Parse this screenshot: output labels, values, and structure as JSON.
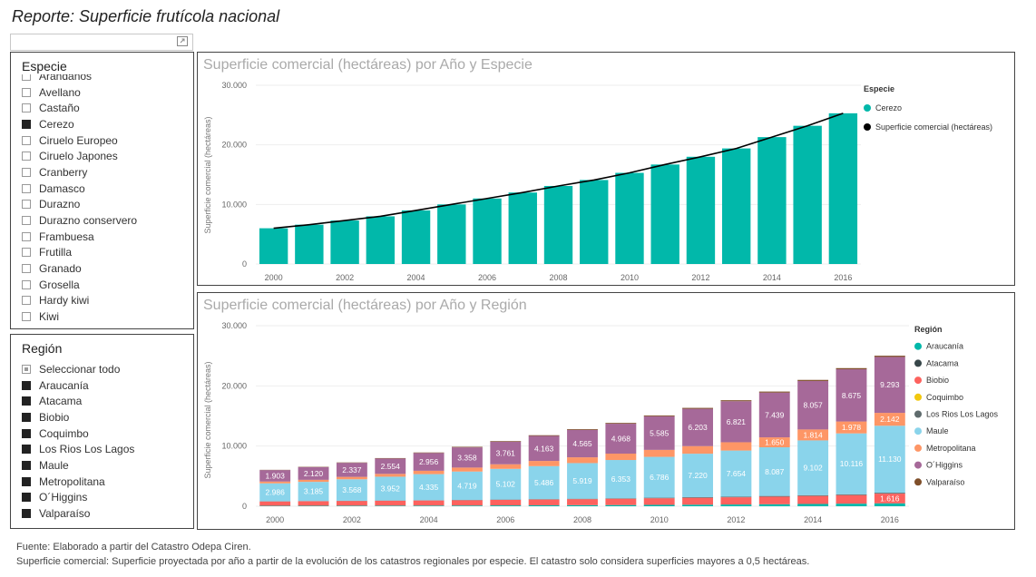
{
  "report": {
    "title": "Reporte: Superficie frutícola nacional"
  },
  "slicer_especie": {
    "title": "Especie",
    "items": [
      {
        "label": "Arándanos",
        "checked": false
      },
      {
        "label": "Avellano",
        "checked": false
      },
      {
        "label": "Castaño",
        "checked": false
      },
      {
        "label": "Cerezo",
        "checked": true
      },
      {
        "label": "Ciruelo Europeo",
        "checked": false
      },
      {
        "label": "Ciruelo Japones",
        "checked": false
      },
      {
        "label": "Cranberry",
        "checked": false
      },
      {
        "label": "Damasco",
        "checked": false
      },
      {
        "label": "Durazno",
        "checked": false
      },
      {
        "label": "Durazno conservero",
        "checked": false
      },
      {
        "label": "Frambuesa",
        "checked": false
      },
      {
        "label": "Frutilla",
        "checked": false
      },
      {
        "label": "Granado",
        "checked": false
      },
      {
        "label": "Grosella",
        "checked": false
      },
      {
        "label": "Hardy kiwi",
        "checked": false
      },
      {
        "label": "Kiwi",
        "checked": false
      }
    ]
  },
  "slicer_region": {
    "title": "Región",
    "items": [
      {
        "label": "Seleccionar todo",
        "state": "partial"
      },
      {
        "label": "Araucanía",
        "state": "on"
      },
      {
        "label": "Atacama",
        "state": "on"
      },
      {
        "label": "Biobio",
        "state": "on"
      },
      {
        "label": "Coquimbo",
        "state": "on"
      },
      {
        "label": "Los Rios Los Lagos",
        "state": "on"
      },
      {
        "label": "Maule",
        "state": "on"
      },
      {
        "label": "Metropolitana",
        "state": "on"
      },
      {
        "label": "O´Higgins",
        "state": "on"
      },
      {
        "label": "Valparaíso",
        "state": "on"
      }
    ]
  },
  "footer": {
    "line1": "Fuente: Elaborado a partir del Catastro Odepa Ciren.",
    "line2": "Superficie comercial: Superficie proyectada por año a partir de la evolución de los catastros regionales por especie. El catastro solo considera superficies mayores a 0,5 hectáreas."
  },
  "chart_data": [
    {
      "type": "bar",
      "title": "Superficie comercial (hectáreas) por Año y Especie",
      "ylabel": "Superficie comercial (hectáreas)",
      "ylim": [
        0,
        30000
      ],
      "yticks": [
        0,
        10000,
        20000,
        30000
      ],
      "ytick_labels": [
        "0",
        "10.000",
        "20.000",
        "30.000"
      ],
      "categories": [
        2000,
        2001,
        2002,
        2003,
        2004,
        2005,
        2006,
        2007,
        2008,
        2009,
        2010,
        2011,
        2012,
        2013,
        2014,
        2015,
        2016
      ],
      "xtick_labels": [
        "2000",
        "2002",
        "2004",
        "2006",
        "2008",
        "2010",
        "2012",
        "2014",
        "2016"
      ],
      "legend_title": "Especie",
      "legend_position": "right",
      "series": [
        {
          "name": "Cerezo",
          "kind": "bar",
          "color": "#01B8AA",
          "values": [
            6000,
            6600,
            7300,
            8000,
            9000,
            10000,
            11000,
            12000,
            13100,
            14100,
            15300,
            16700,
            18000,
            19400,
            21300,
            23200,
            25300
          ]
        },
        {
          "name": "Superficie comercial (hectáreas)",
          "kind": "line",
          "color": "#000000",
          "values": [
            6000,
            6600,
            7300,
            8000,
            9000,
            10000,
            11000,
            12000,
            13100,
            14100,
            15300,
            16700,
            18000,
            19400,
            21300,
            23200,
            25300
          ]
        }
      ]
    },
    {
      "type": "bar",
      "stacked": true,
      "title": "Superficie comercial (hectáreas) por Año y Región",
      "ylabel": "Superficie comercial (hectáreas)",
      "ylim": [
        0,
        30000
      ],
      "yticks": [
        0,
        10000,
        20000,
        30000
      ],
      "ytick_labels": [
        "0",
        "10.000",
        "20.000",
        "30.000"
      ],
      "categories": [
        2000,
        2001,
        2002,
        2003,
        2004,
        2005,
        2006,
        2007,
        2008,
        2009,
        2010,
        2011,
        2012,
        2013,
        2014,
        2015,
        2016
      ],
      "xtick_labels": [
        "2000",
        "2002",
        "2004",
        "2006",
        "2008",
        "2010",
        "2012",
        "2014",
        "2016"
      ],
      "legend_title": "Región",
      "legend_position": "right",
      "series": [
        {
          "name": "Araucanía",
          "color": "#01B8AA",
          "values": [
            70,
            80,
            90,
            100,
            110,
            120,
            140,
            160,
            180,
            200,
            230,
            260,
            290,
            330,
            380,
            430,
            480
          ]
        },
        {
          "name": "Atacama",
          "color": "#374649",
          "values": [
            0,
            0,
            0,
            0,
            0,
            0,
            0,
            0,
            0,
            0,
            0,
            0,
            0,
            0,
            0,
            0,
            0
          ]
        },
        {
          "name": "Biobio",
          "color": "#FD625E",
          "values": [
            730,
            760,
            790,
            820,
            850,
            880,
            920,
            960,
            1000,
            1050,
            1100,
            1150,
            1200,
            1260,
            1330,
            1420,
            1616
          ],
          "labels": [
            null,
            null,
            null,
            null,
            null,
            null,
            null,
            null,
            null,
            null,
            null,
            null,
            null,
            null,
            null,
            null,
            "1.616"
          ]
        },
        {
          "name": "Coquimbo",
          "color": "#F2C80F",
          "values": [
            0,
            0,
            0,
            0,
            0,
            0,
            0,
            0,
            0,
            0,
            0,
            0,
            0,
            0,
            0,
            0,
            0
          ]
        },
        {
          "name": "Los Rios Los Lagos",
          "color": "#5F6B6D",
          "values": [
            20,
            25,
            30,
            35,
            40,
            45,
            50,
            60,
            70,
            80,
            90,
            100,
            110,
            120,
            130,
            140,
            150
          ]
        },
        {
          "name": "Maule",
          "color": "#8AD4EB",
          "values": [
            2986,
            3185,
            3568,
            3952,
            4335,
            4719,
            5102,
            5486,
            5919,
            6353,
            6786,
            7220,
            7654,
            8087,
            9102,
            10116,
            11130
          ],
          "labels": [
            "2.986",
            "3.185",
            "3.568",
            "3.952",
            "4.335",
            "4.719",
            "5.102",
            "5.486",
            "5.919",
            "6.353",
            "6.786",
            "7.220",
            "7.654",
            "8.087",
            "9.102",
            "10.116",
            "11.130"
          ]
        },
        {
          "name": "Metropolitana",
          "color": "#FE9666",
          "values": [
            300,
            340,
            400,
            470,
            560,
            660,
            760,
            860,
            960,
            1060,
            1160,
            1260,
            1380,
            1650,
            1814,
            1978,
            2142
          ],
          "labels": [
            null,
            null,
            null,
            null,
            null,
            null,
            null,
            null,
            null,
            null,
            null,
            null,
            null,
            "1.650",
            "1.814",
            "1.978",
            "2.142"
          ]
        },
        {
          "name": "O´Higgins",
          "color": "#A66999",
          "values": [
            1903,
            2120,
            2337,
            2554,
            2956,
            3358,
            3761,
            4163,
            4565,
            4968,
            5585,
            6203,
            6821,
            7439,
            8057,
            8675,
            9293
          ],
          "labels": [
            "1.903",
            "2.120",
            "2.337",
            "2.554",
            "2.956",
            "3.358",
            "3.761",
            "4.163",
            "4.565",
            "4.968",
            "5.585",
            "6.203",
            "6.821",
            "7.439",
            "8.057",
            "8.675",
            "9.293"
          ]
        },
        {
          "name": "Valparaíso",
          "color": "#7F4F2A",
          "values": [
            40,
            50,
            60,
            70,
            80,
            90,
            100,
            110,
            120,
            130,
            140,
            150,
            160,
            170,
            180,
            190,
            200
          ]
        }
      ]
    }
  ]
}
